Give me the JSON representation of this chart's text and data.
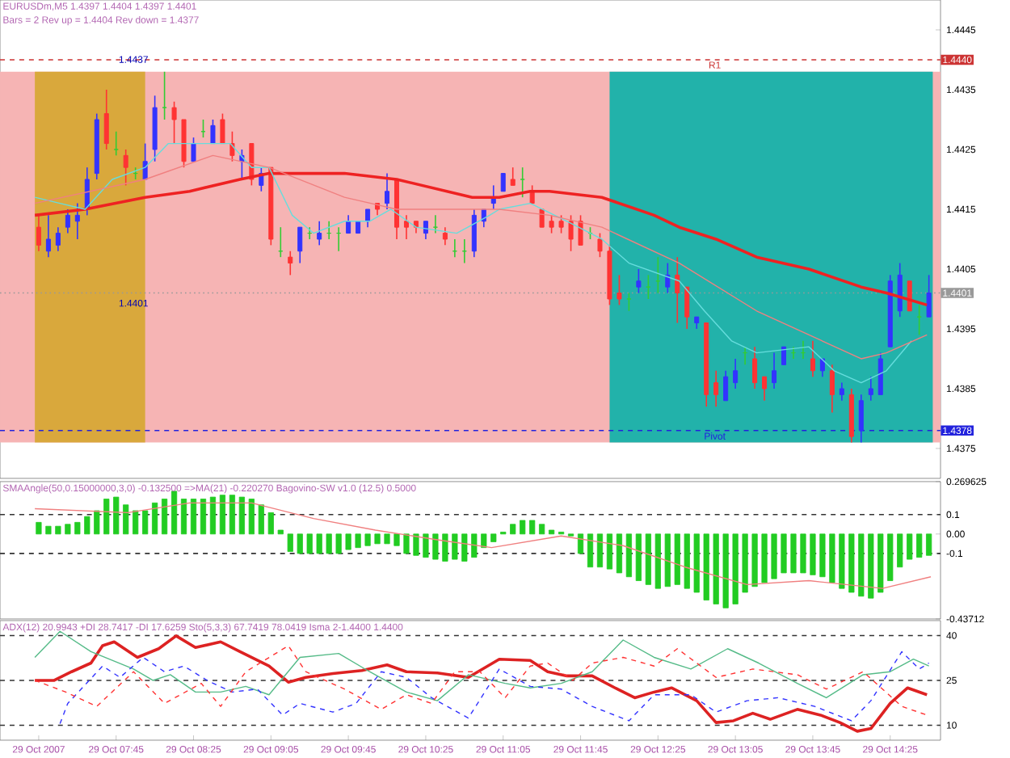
{
  "chart_data": [
    {
      "type": "candlestick",
      "title": "EURUSDm,M5  1.4397 1.4404 1.4397 1.4401",
      "subtitle": "Bars = 2 Rev up =  1.4404 Rev down = 1.4377",
      "x": [
        "2007-10-29T07:05",
        "2007-10-29T07:10",
        "2007-10-29T07:15",
        "2007-10-29T07:20",
        "2007-10-29T07:25",
        "2007-10-29T07:30",
        "2007-10-29T07:35",
        "2007-10-29T07:40",
        "2007-10-29T07:45",
        "2007-10-29T07:50",
        "2007-10-29T07:55",
        "2007-10-29T08:00",
        "2007-10-29T08:05",
        "2007-10-29T08:10",
        "2007-10-29T08:15",
        "2007-10-29T08:20",
        "2007-10-29T08:25",
        "2007-10-29T08:30",
        "2007-10-29T08:35",
        "2007-10-29T08:40",
        "2007-10-29T08:45",
        "2007-10-29T08:50",
        "2007-10-29T08:55",
        "2007-10-29T09:00",
        "2007-10-29T09:05",
        "2007-10-29T09:10",
        "2007-10-29T09:15",
        "2007-10-29T09:20",
        "2007-10-29T09:25",
        "2007-10-29T09:30",
        "2007-10-29T09:35",
        "2007-10-29T09:40",
        "2007-10-29T09:45",
        "2007-10-29T09:50",
        "2007-10-29T09:55",
        "2007-10-29T10:00",
        "2007-10-29T10:05",
        "2007-10-29T10:10",
        "2007-10-29T10:15",
        "2007-10-29T10:20",
        "2007-10-29T10:25",
        "2007-10-29T10:30",
        "2007-10-29T10:35",
        "2007-10-29T10:40",
        "2007-10-29T10:45",
        "2007-10-29T10:50",
        "2007-10-29T10:55",
        "2007-10-29T11:00",
        "2007-10-29T11:05",
        "2007-10-29T11:10",
        "2007-10-29T11:15",
        "2007-10-29T11:20",
        "2007-10-29T11:25",
        "2007-10-29T11:30",
        "2007-10-29T11:35",
        "2007-10-29T11:40",
        "2007-10-29T11:45",
        "2007-10-29T11:50",
        "2007-10-29T11:55",
        "2007-10-29T12:00",
        "2007-10-29T12:05",
        "2007-10-29T12:10",
        "2007-10-29T12:15",
        "2007-10-29T12:20",
        "2007-10-29T12:25",
        "2007-10-29T12:30",
        "2007-10-29T12:35",
        "2007-10-29T12:40",
        "2007-10-29T12:45",
        "2007-10-29T12:50",
        "2007-10-29T12:55",
        "2007-10-29T13:00",
        "2007-10-29T13:05",
        "2007-10-29T13:10",
        "2007-10-29T13:15",
        "2007-10-29T13:20",
        "2007-10-29T13:25",
        "2007-10-29T13:30",
        "2007-10-29T13:35",
        "2007-10-29T13:40",
        "2007-10-29T13:45",
        "2007-10-29T13:50",
        "2007-10-29T13:55",
        "2007-10-29T14:00",
        "2007-10-29T14:05",
        "2007-10-29T14:10",
        "2007-10-29T14:15",
        "2007-10-29T14:20",
        "2007-10-29T14:25",
        "2007-10-29T14:30",
        "2007-10-29T14:35",
        "2007-10-29T14:40",
        "2007-10-29T14:45"
      ],
      "ohlc": [
        [
          1.4412,
          1.4414,
          1.4408,
          1.4409
        ],
        [
          1.4408,
          1.4414,
          1.4407,
          1.441
        ],
        [
          1.4409,
          1.4412,
          1.4408,
          1.4411
        ],
        [
          1.4412,
          1.4415,
          1.4411,
          1.4414
        ],
        [
          1.4413,
          1.4416,
          1.441,
          1.4414
        ],
        [
          1.4415,
          1.4422,
          1.4414,
          1.442
        ],
        [
          1.4421,
          1.4431,
          1.442,
          1.443
        ],
        [
          1.4431,
          1.4435,
          1.4425,
          1.4426
        ],
        [
          1.4425,
          1.4428,
          1.4424,
          1.4425
        ],
        [
          1.4424,
          1.4425,
          1.4419,
          1.4422
        ],
        [
          1.4421,
          1.4422,
          1.442,
          1.4421
        ],
        [
          1.442,
          1.4426,
          1.442,
          1.4423
        ],
        [
          1.4425,
          1.4434,
          1.4423,
          1.4432
        ],
        [
          1.4432,
          1.4438,
          1.443,
          1.4432
        ],
        [
          1.4432,
          1.4433,
          1.4426,
          1.443
        ],
        [
          1.443,
          1.443,
          1.4422,
          1.4423
        ],
        [
          1.4423,
          1.4427,
          1.4423,
          1.4426
        ],
        [
          1.4428,
          1.443,
          1.4427,
          1.4428
        ],
        [
          1.4426,
          1.443,
          1.4426,
          1.4429
        ],
        [
          1.443,
          1.4431,
          1.4426,
          1.4426
        ],
        [
          1.4426,
          1.4428,
          1.4423,
          1.4424
        ],
        [
          1.4423,
          1.4425,
          1.442,
          1.4424
        ],
        [
          1.4426,
          1.4426,
          1.4419,
          1.442
        ],
        [
          1.4419,
          1.4422,
          1.4418,
          1.4421
        ],
        [
          1.4422,
          1.4422,
          1.4409,
          1.441
        ],
        [
          1.4408,
          1.4412,
          1.4407,
          1.4408
        ],
        [
          1.4407,
          1.4408,
          1.4404,
          1.4406
        ],
        [
          1.4408,
          1.4412,
          1.4406,
          1.4412
        ],
        [
          1.4411,
          1.4412,
          1.441,
          1.4411
        ],
        [
          1.441,
          1.4413,
          1.4409,
          1.4411
        ],
        [
          1.4411,
          1.4413,
          1.441,
          1.4411
        ],
        [
          1.4411,
          1.4412,
          1.4408,
          1.4411
        ],
        [
          1.4411,
          1.4414,
          1.4411,
          1.4413
        ],
        [
          1.4411,
          1.4413,
          1.4411,
          1.4413
        ],
        [
          1.4413,
          1.4415,
          1.4412,
          1.4415
        ],
        [
          1.4416,
          1.4416,
          1.4414,
          1.4415
        ],
        [
          1.4416,
          1.4421,
          1.4415,
          1.4418
        ],
        [
          1.442,
          1.442,
          1.441,
          1.4412
        ],
        [
          1.4413,
          1.4414,
          1.441,
          1.4412
        ],
        [
          1.4413,
          1.4413,
          1.4411,
          1.4412
        ],
        [
          1.4411,
          1.4413,
          1.441,
          1.4413
        ],
        [
          1.4412,
          1.4414,
          1.4411,
          1.4412
        ],
        [
          1.4411,
          1.4412,
          1.4409,
          1.441
        ],
        [
          1.4408,
          1.441,
          1.4407,
          1.4408
        ],
        [
          1.4408,
          1.441,
          1.4406,
          1.4408
        ],
        [
          1.4408,
          1.4415,
          1.4407,
          1.4414
        ],
        [
          1.4413,
          1.4415,
          1.4412,
          1.4415
        ],
        [
          1.4416,
          1.4419,
          1.4415,
          1.4417
        ],
        [
          1.4418,
          1.4421,
          1.4418,
          1.4421
        ],
        [
          1.442,
          1.4422,
          1.4419,
          1.4419
        ],
        [
          1.442,
          1.4422,
          1.4417,
          1.442
        ],
        [
          1.4418,
          1.4419,
          1.4416,
          1.4416
        ],
        [
          1.4415,
          1.4415,
          1.4412,
          1.4412
        ],
        [
          1.4413,
          1.4414,
          1.4411,
          1.4412
        ],
        [
          1.4413,
          1.4414,
          1.4411,
          1.4412
        ],
        [
          1.4413,
          1.4414,
          1.4408,
          1.441
        ],
        [
          1.4413,
          1.4414,
          1.4409,
          1.4409
        ],
        [
          1.4411,
          1.4412,
          1.441,
          1.4411
        ],
        [
          1.441,
          1.4411,
          1.4407,
          1.4408
        ],
        [
          1.4408,
          1.4409,
          1.4399,
          1.44
        ],
        [
          1.4401,
          1.4404,
          1.4399,
          1.44
        ],
        [
          1.44,
          1.4401,
          1.4398,
          1.44
        ],
        [
          1.4402,
          1.4405,
          1.4401,
          1.4403
        ],
        [
          1.4402,
          1.4404,
          1.44,
          1.4402
        ],
        [
          1.4403,
          1.4407,
          1.4401,
          1.4403
        ],
        [
          1.4402,
          1.4406,
          1.4401,
          1.4404
        ],
        [
          1.4404,
          1.4407,
          1.4396,
          1.4401
        ],
        [
          1.4402,
          1.4402,
          1.4395,
          1.4397
        ],
        [
          1.4396,
          1.4397,
          1.4395,
          1.4397
        ],
        [
          1.4396,
          1.4396,
          1.4382,
          1.4384
        ],
        [
          1.4386,
          1.4388,
          1.4382,
          1.4384
        ],
        [
          1.4383,
          1.4388,
          1.4383,
          1.4387
        ],
        [
          1.4386,
          1.439,
          1.4385,
          1.4388
        ],
        [
          1.4391,
          1.4392,
          1.4389,
          1.4391
        ],
        [
          1.439,
          1.4392,
          1.4385,
          1.4386
        ],
        [
          1.4387,
          1.4387,
          1.4383,
          1.4385
        ],
        [
          1.4386,
          1.4391,
          1.4385,
          1.4388
        ],
        [
          1.4389,
          1.4392,
          1.4389,
          1.4392
        ],
        [
          1.4391,
          1.4392,
          1.439,
          1.4391
        ],
        [
          1.4391,
          1.4393,
          1.439,
          1.4391
        ],
        [
          1.439,
          1.4393,
          1.4387,
          1.4388
        ],
        [
          1.4388,
          1.439,
          1.4387,
          1.439
        ],
        [
          1.4388,
          1.4389,
          1.4381,
          1.4384
        ],
        [
          1.4384,
          1.4386,
          1.4383,
          1.4385
        ],
        [
          1.4384,
          1.4385,
          1.4376,
          1.4377
        ],
        [
          1.4378,
          1.4384,
          1.4376,
          1.4383
        ],
        [
          1.4384,
          1.4387,
          1.4383,
          1.4385
        ],
        [
          1.4384,
          1.4391,
          1.4384,
          1.439
        ],
        [
          1.4392,
          1.4404,
          1.4392,
          1.4403
        ],
        [
          1.4398,
          1.4406,
          1.4397,
          1.4404
        ],
        [
          1.4403,
          1.4403,
          1.4398,
          1.4398
        ],
        [
          1.4397,
          1.4399,
          1.4394,
          1.4397
        ],
        [
          1.4397,
          1.4404,
          1.4397,
          1.4401
        ]
      ],
      "colors": [
        "#ff3333",
        "#3333ff",
        "#3333ff",
        "#3333ff",
        "#3333ff",
        "#3333ff",
        "#3333ff",
        "#ff3333",
        "#33cc33",
        "#ff3333",
        "#33cc33",
        "#3333ff",
        "#3333ff",
        "#33cc33",
        "#ff3333",
        "#ff3333",
        "#3333ff",
        "#33cc33",
        "#3333ff",
        "#ff3333",
        "#ff3333",
        "#3333ff",
        "#ff3333",
        "#3333ff",
        "#ff3333",
        "#33cc33",
        "#ff3333",
        "#3333ff",
        "#33cc33",
        "#3333ff",
        "#33cc33",
        "#33cc33",
        "#3333ff",
        "#3333ff",
        "#3333ff",
        "#ff3333",
        "#3333ff",
        "#ff3333",
        "#ff3333",
        "#ff3333",
        "#3333ff",
        "#33cc33",
        "#ff3333",
        "#33cc33",
        "#33cc33",
        "#3333ff",
        "#3333ff",
        "#3333ff",
        "#3333ff",
        "#ff3333",
        "#33cc33",
        "#ff3333",
        "#ff3333",
        "#ff3333",
        "#ff3333",
        "#ff3333",
        "#ff3333",
        "#33cc33",
        "#ff3333",
        "#ff3333",
        "#ff3333",
        "#33cc33",
        "#3333ff",
        "#33cc33",
        "#33cc33",
        "#3333ff",
        "#ff3333",
        "#ff3333",
        "#3333ff",
        "#ff3333",
        "#ff3333",
        "#3333ff",
        "#3333ff",
        "#33cc33",
        "#ff3333",
        "#ff3333",
        "#3333ff",
        "#3333ff",
        "#33cc33",
        "#33cc33",
        "#ff3333",
        "#3333ff",
        "#ff3333",
        "#3333ff",
        "#ff3333",
        "#3333ff",
        "#3333ff",
        "#3333ff",
        "#3333ff",
        "#3333ff",
        "#ff3333",
        "#33cc33",
        "#3333ff"
      ],
      "series": [
        {
          "type": "line",
          "color": "#ee2222",
          "x": [
            "2007-10-29T07:03",
            "2007-10-29T07:29",
            "2007-10-29T08:00",
            "2007-10-29T08:23",
            "2007-10-29T08:49",
            "2007-10-29T09:04",
            "2007-10-29T09:43",
            "2007-10-29T10:10",
            "2007-10-29T10:49",
            "2007-10-29T11:03",
            "2007-10-29T11:19",
            "2007-10-29T11:29",
            "2007-10-29T11:56",
            "2007-10-29T12:23",
            "2007-10-29T12:36",
            "2007-10-29T12:55",
            "2007-10-29T13:16",
            "2007-10-29T13:43",
            "2007-10-29T14:10",
            "2007-10-29T14:23",
            "2007-10-29T14:44"
          ],
          "values": [
            1.4414,
            1.4415,
            1.4417,
            1.4418,
            1.442,
            1.4421,
            1.4421,
            1.442,
            1.4417,
            1.4417,
            1.4418,
            1.4418,
            1.4417,
            1.4414,
            1.4412,
            1.441,
            1.4407,
            1.4405,
            1.4402,
            1.4401,
            1.4399
          ]
        },
        {
          "type": "line",
          "color": "#66dddd",
          "x": [
            "2007-10-29T07:03",
            "2007-10-29T07:16",
            "2007-10-29T07:29",
            "2007-10-29T07:43",
            "2007-10-29T08:00",
            "2007-10-29T08:12",
            "2007-10-29T08:35",
            "2007-10-29T08:44",
            "2007-10-29T08:55",
            "2007-10-29T09:04",
            "2007-10-29T09:16",
            "2007-10-29T09:27",
            "2007-10-29T09:43",
            "2007-10-29T09:56",
            "2007-10-29T10:07",
            "2007-10-29T10:20",
            "2007-10-29T10:41",
            "2007-10-29T10:58",
            "2007-10-29T11:03",
            "2007-10-29T11:19",
            "2007-10-29T11:38",
            "2007-10-29T11:56",
            "2007-10-29T12:10",
            "2007-10-29T12:36",
            "2007-10-29T12:49",
            "2007-10-29T13:03",
            "2007-10-29T13:16",
            "2007-10-29T13:43",
            "2007-10-29T13:56",
            "2007-10-29T14:10",
            "2007-10-29T14:23",
            "2007-10-29T14:36"
          ],
          "values": [
            1.4417,
            1.4416,
            1.4415,
            1.442,
            1.4422,
            1.4426,
            1.4426,
            1.4426,
            1.4422,
            1.4422,
            1.4414,
            1.4411,
            1.4413,
            1.4413,
            1.4415,
            1.4412,
            1.4411,
            1.4414,
            1.4415,
            1.4416,
            1.4413,
            1.441,
            1.4406,
            1.4403,
            1.4398,
            1.4393,
            1.4391,
            1.4392,
            1.4388,
            1.4386,
            1.4388,
            1.4393
          ]
        },
        {
          "type": "line",
          "color": "#f08080",
          "x": [
            "2007-10-29T07:03",
            "2007-10-29T08:00",
            "2007-10-29T08:35",
            "2007-10-29T09:04",
            "2007-10-29T09:43",
            "2007-10-29T10:10",
            "2007-10-29T10:49",
            "2007-10-29T11:03",
            "2007-10-29T11:29",
            "2007-10-29T11:56",
            "2007-10-29T12:36",
            "2007-10-29T13:16",
            "2007-10-29T13:43",
            "2007-10-29T14:10",
            "2007-10-29T14:23",
            "2007-10-29T14:44"
          ],
          "values": [
            1.4416,
            1.442,
            1.4424,
            1.4422,
            1.4417,
            1.4415,
            1.4415,
            1.4415,
            1.4414,
            1.4412,
            1.4406,
            1.4398,
            1.4394,
            1.439,
            1.4391,
            1.4394
          ]
        }
      ],
      "bands": [
        {
          "axis": "y",
          "from": 1.4376,
          "to": 1.4438,
          "color": "#f6b4b4"
        },
        {
          "axis": "x",
          "from": "2007-10-29T07:03",
          "to": "2007-10-29T08:00",
          "color": "#d9a83c"
        },
        {
          "axis": "x",
          "from": "2007-10-29T12:00",
          "to": "2007-10-29T14:47",
          "color": "#22b2aa"
        }
      ],
      "ref_lines": [
        {
          "axis": "y",
          "value": 1.444,
          "label": "R1",
          "color": "#cc3333",
          "line_style": "dashed"
        },
        {
          "axis": "y",
          "value": 1.4378,
          "label": "Pivot",
          "color": "#2222dd",
          "line_style": "dashed"
        },
        {
          "axis": "y",
          "value": 1.4401,
          "color": "#999999",
          "line_style": "dotted"
        }
      ],
      "annotations": [
        {
          "text": "1.4437",
          "x": "2007-10-29T07:54",
          "y": 1.4437
        },
        {
          "text": "1.4401",
          "x": "2007-10-29T07:54",
          "y": 1.4401
        },
        {
          "text": "1.4440",
          "x": "2007-10-29T14:51",
          "y": 1.444
        },
        {
          "text": "1.4401",
          "x": "2007-10-29T14:51",
          "y": 1.4401
        },
        {
          "text": "1.4378",
          "x": "2007-10-29T14:51",
          "y": 1.4378
        }
      ],
      "xlim": [
        "2007-10-29T06:45",
        "2007-10-29T14:51"
      ],
      "ylim": [
        1.437,
        1.445
      ],
      "yticks": [
        1.4375,
        1.4385,
        1.4395,
        1.4405,
        1.4415,
        1.4425,
        1.4435,
        1.4445
      ],
      "tick_labels": "y"
    },
    {
      "type": "bar",
      "title": "SMAAngle(50,0.15000000,3,0) -0.132500  =>MA(21) -0.220270  Bagovino-SW v1.0 (12.5) 0.5000",
      "x": [
        "2007-10-29T07:05",
        "2007-10-29T07:10",
        "2007-10-29T07:15",
        "2007-10-29T07:20",
        "2007-10-29T07:25",
        "2007-10-29T07:30",
        "2007-10-29T07:35",
        "2007-10-29T07:40",
        "2007-10-29T07:45",
        "2007-10-29T07:50",
        "2007-10-29T07:55",
        "2007-10-29T08:00",
        "2007-10-29T08:05",
        "2007-10-29T08:10",
        "2007-10-29T08:15",
        "2007-10-29T08:20",
        "2007-10-29T08:25",
        "2007-10-29T08:30",
        "2007-10-29T08:35",
        "2007-10-29T08:40",
        "2007-10-29T08:45",
        "2007-10-29T08:50",
        "2007-10-29T08:55",
        "2007-10-29T09:00",
        "2007-10-29T09:05",
        "2007-10-29T09:10",
        "2007-10-29T09:15",
        "2007-10-29T09:20",
        "2007-10-29T09:25",
        "2007-10-29T09:30",
        "2007-10-29T09:35",
        "2007-10-29T09:40",
        "2007-10-29T09:45",
        "2007-10-29T09:50",
        "2007-10-29T09:55",
        "2007-10-29T10:00",
        "2007-10-29T10:05",
        "2007-10-29T10:10",
        "2007-10-29T10:15",
        "2007-10-29T10:20",
        "2007-10-29T10:25",
        "2007-10-29T10:30",
        "2007-10-29T10:35",
        "2007-10-29T10:40",
        "2007-10-29T10:45",
        "2007-10-29T10:50",
        "2007-10-29T10:55",
        "2007-10-29T11:00",
        "2007-10-29T11:05",
        "2007-10-29T11:10",
        "2007-10-29T11:15",
        "2007-10-29T11:20",
        "2007-10-29T11:25",
        "2007-10-29T11:30",
        "2007-10-29T11:35",
        "2007-10-29T11:40",
        "2007-10-29T11:45",
        "2007-10-29T11:50",
        "2007-10-29T11:55",
        "2007-10-29T12:00",
        "2007-10-29T12:05",
        "2007-10-29T12:10",
        "2007-10-29T12:15",
        "2007-10-29T12:20",
        "2007-10-29T12:25",
        "2007-10-29T12:30",
        "2007-10-29T12:35",
        "2007-10-29T12:40",
        "2007-10-29T12:45",
        "2007-10-29T12:50",
        "2007-10-29T12:55",
        "2007-10-29T13:00",
        "2007-10-29T13:05",
        "2007-10-29T13:10",
        "2007-10-29T13:15",
        "2007-10-29T13:20",
        "2007-10-29T13:25",
        "2007-10-29T13:30",
        "2007-10-29T13:35",
        "2007-10-29T13:40",
        "2007-10-29T13:45",
        "2007-10-29T13:50",
        "2007-10-29T13:55",
        "2007-10-29T14:00",
        "2007-10-29T14:05",
        "2007-10-29T14:10",
        "2007-10-29T14:15",
        "2007-10-29T14:20",
        "2007-10-29T14:25",
        "2007-10-29T14:30",
        "2007-10-29T14:35",
        "2007-10-29T14:40",
        "2007-10-29T14:45"
      ],
      "series": [
        {
          "type": "bar",
          "color": "#22cc22",
          "values": [
            0.06,
            0.04,
            0.04,
            0.05,
            0.06,
            0.09,
            0.12,
            0.18,
            0.19,
            0.15,
            0.12,
            0.12,
            0.16,
            0.18,
            0.22,
            0.18,
            0.18,
            0.18,
            0.19,
            0.2,
            0.2,
            0.19,
            0.18,
            0.15,
            0.11,
            0.02,
            -0.09,
            -0.1,
            -0.1,
            -0.1,
            -0.1,
            -0.1,
            -0.08,
            -0.07,
            -0.06,
            -0.05,
            -0.05,
            -0.06,
            -0.1,
            -0.11,
            -0.12,
            -0.13,
            -0.14,
            -0.13,
            -0.14,
            -0.12,
            -0.07,
            -0.04,
            0.01,
            0.05,
            0.07,
            0.07,
            0.05,
            0.02,
            0.01,
            -0.01,
            -0.1,
            -0.17,
            -0.17,
            -0.18,
            -0.2,
            -0.22,
            -0.24,
            -0.26,
            -0.28,
            -0.27,
            -0.26,
            -0.28,
            -0.3,
            -0.34,
            -0.36,
            -0.38,
            -0.36,
            -0.3,
            -0.27,
            -0.25,
            -0.23,
            -0.2,
            -0.2,
            -0.2,
            -0.21,
            -0.22,
            -0.25,
            -0.28,
            -0.3,
            -0.32,
            -0.33,
            -0.3,
            -0.24,
            -0.17,
            -0.13,
            -0.12,
            -0.11
          ]
        },
        {
          "type": "line",
          "color": "#f08080",
          "x": [
            "2007-10-29T07:03",
            "2007-10-29T07:51",
            "2007-10-29T08:23",
            "2007-10-29T08:55",
            "2007-10-29T09:27",
            "2007-10-29T09:59",
            "2007-10-29T10:31",
            "2007-10-29T10:59",
            "2007-10-29T11:35",
            "2007-10-29T12:07",
            "2007-10-29T12:39",
            "2007-10-29T13:11",
            "2007-10-29T13:43",
            "2007-10-29T14:21",
            "2007-10-29T14:46"
          ],
          "values": [
            0.13,
            0.11,
            0.16,
            0.16,
            0.08,
            0.02,
            -0.03,
            -0.07,
            -0.01,
            -0.06,
            -0.17,
            -0.26,
            -0.24,
            -0.28,
            -0.22
          ]
        }
      ],
      "ref_lines": [
        {
          "axis": "y",
          "value": 0.1,
          "color": "#333333",
          "line_style": "dashed"
        },
        {
          "axis": "y",
          "value": -0.1,
          "color": "#333333",
          "line_style": "dashed"
        }
      ],
      "xlim": [
        "2007-10-29T06:45",
        "2007-10-29T14:51"
      ],
      "ylim": [
        -0.43712,
        0.269625
      ],
      "yticks": [
        -0.43712,
        -0.1,
        {
          "value": 0,
          "label": "0.00"
        },
        0.1,
        0.269625
      ],
      "tick_labels": "y"
    },
    {
      "type": "line",
      "title": "ADX(12) 20.9943 +DI 28.7417 -DI 17.6259 Sto(5,3,3) 67.7419 78.0419 Isma 2-1.4400 1.4400",
      "series": [
        {
          "color": "#dd2222",
          "x": [
            "2007-10-29T07:03",
            "2007-10-29T07:13",
            "2007-10-29T07:22",
            "2007-10-29T07:32",
            "2007-10-29T07:38",
            "2007-10-29T07:44",
            "2007-10-29T07:56",
            "2007-10-29T08:07",
            "2007-10-29T08:16",
            "2007-10-29T08:26",
            "2007-10-29T08:39",
            "2007-10-29T08:49",
            "2007-10-29T09:04",
            "2007-10-29T09:14",
            "2007-10-29T09:23",
            "2007-10-29T09:37",
            "2007-10-29T09:52",
            "2007-10-29T10:05",
            "2007-10-29T10:15",
            "2007-10-29T10:31",
            "2007-10-29T10:47",
            "2007-10-29T11:03",
            "2007-10-29T11:19",
            "2007-10-29T11:28",
            "2007-10-29T11:38",
            "2007-10-29T11:51",
            "2007-10-29T12:04",
            "2007-10-29T12:13",
            "2007-10-29T12:23",
            "2007-10-29T12:32",
            "2007-10-29T12:45",
            "2007-10-29T12:55",
            "2007-10-29T13:04",
            "2007-10-29T13:14",
            "2007-10-29T13:23",
            "2007-10-29T13:37",
            "2007-10-29T13:49",
            "2007-10-29T13:59",
            "2007-10-29T14:08",
            "2007-10-29T14:15",
            "2007-10-29T14:25",
            "2007-10-29T14:34",
            "2007-10-29T14:44"
          ],
          "values": [
            25,
            25,
            27.9,
            30.8,
            36.6,
            37.9,
            32.7,
            35.6,
            39.9,
            36,
            37.9,
            34.6,
            29.8,
            24.4,
            26,
            27.3,
            28.3,
            30.2,
            27.9,
            27.5,
            26,
            32.1,
            31.7,
            27.9,
            26.5,
            26.5,
            22.1,
            19.2,
            21.1,
            22.5,
            18.2,
            10.9,
            11.5,
            14,
            12,
            15.3,
            13.4,
            10.9,
            8,
            8.9,
            17.3,
            22.5,
            20.2
          ]
        },
        {
          "color": "#55bb88",
          "x": [
            "2007-10-29T07:03",
            "2007-10-29T07:16",
            "2007-10-29T07:32",
            "2007-10-29T07:54",
            "2007-10-29T08:04",
            "2007-10-29T08:13",
            "2007-10-29T08:26",
            "2007-10-29T08:39",
            "2007-10-29T08:52",
            "2007-10-29T09:04",
            "2007-10-29T09:20",
            "2007-10-29T09:40",
            "2007-10-29T09:56",
            "2007-10-29T10:15",
            "2007-10-29T10:31",
            "2007-10-29T10:47",
            "2007-10-29T11:06",
            "2007-10-29T11:19",
            "2007-10-29T11:35",
            "2007-10-29T11:51",
            "2007-10-29T12:07",
            "2007-10-29T12:23",
            "2007-10-29T12:42",
            "2007-10-29T13:01",
            "2007-10-29T13:17",
            "2007-10-29T13:37",
            "2007-10-29T13:52",
            "2007-10-29T14:11",
            "2007-10-29T14:25",
            "2007-10-29T14:37",
            "2007-10-29T14:45"
          ],
          "values": [
            32.7,
            41.4,
            34.6,
            28.8,
            25,
            26.9,
            21.1,
            21.1,
            23,
            20.2,
            32.7,
            34,
            27.9,
            21.1,
            18.2,
            26.9,
            24,
            22.5,
            24,
            27.9,
            38.5,
            32.7,
            28.8,
            35.6,
            30.8,
            24,
            19.2,
            26.9,
            27.9,
            32.1,
            29.8
          ]
        },
        {
          "color": "#3333ff",
          "line_style": "dashed",
          "x": [
            "2007-10-29T07:16",
            "2007-10-29T07:20",
            "2007-10-29T07:38",
            "2007-10-29T07:47",
            "2007-10-29T07:59",
            "2007-10-29T08:10",
            "2007-10-29T08:20",
            "2007-10-29T08:32",
            "2007-10-29T08:45",
            "2007-10-29T08:58",
            "2007-10-29T09:11",
            "2007-10-29T09:20",
            "2007-10-29T09:37",
            "2007-10-29T09:49",
            "2007-10-29T10:02",
            "2007-10-29T10:15",
            "2007-10-29T10:28",
            "2007-10-29T10:47",
            "2007-10-29T11:03",
            "2007-10-29T11:19",
            "2007-10-29T11:35",
            "2007-10-29T11:51",
            "2007-10-29T12:10",
            "2007-10-29T12:23",
            "2007-10-29T12:42",
            "2007-10-29T12:55",
            "2007-10-29T13:11",
            "2007-10-29T13:27",
            "2007-10-29T13:46",
            "2007-10-29T14:05",
            "2007-10-29T14:15",
            "2007-10-29T14:31",
            "2007-10-29T14:40",
            "2007-10-29T14:45"
          ],
          "values": [
            10.5,
            17.3,
            29.8,
            26,
            32.7,
            27.9,
            29.8,
            25,
            21.1,
            22.1,
            13.4,
            17.3,
            14.4,
            17.3,
            27.9,
            26,
            19.2,
            12.4,
            28.8,
            23,
            22.1,
            16.3,
            11.5,
            20.2,
            20.2,
            14.4,
            18.2,
            19.2,
            16.3,
            11.5,
            18.2,
            34.6,
            28.8,
            30.8
          ]
        },
        {
          "color": "#ff3333",
          "line_style": "dashed",
          "x": [
            "2007-10-29T07:03",
            "2007-10-29T07:19",
            "2007-10-29T07:35",
            "2007-10-29T07:54",
            "2007-10-29T08:10",
            "2007-10-29T08:29",
            "2007-10-29T08:39",
            "2007-10-29T08:52",
            "2007-10-29T09:14",
            "2007-10-29T09:23",
            "2007-10-29T09:43",
            "2007-10-29T10:02",
            "2007-10-29T10:15",
            "2007-10-29T10:28",
            "2007-10-29T10:40",
            "2007-10-29T10:53",
            "2007-10-29T11:06",
            "2007-10-29T11:19",
            "2007-10-29T11:28",
            "2007-10-29T11:41",
            "2007-10-29T11:51",
            "2007-10-29T12:07",
            "2007-10-29T12:23",
            "2007-10-29T12:35",
            "2007-10-29T12:55",
            "2007-10-29T13:14",
            "2007-10-29T13:37",
            "2007-10-29T13:52",
            "2007-10-29T14:11",
            "2007-10-29T14:31",
            "2007-10-29T14:44"
          ],
          "values": [
            25,
            21.1,
            16.3,
            27.9,
            17.3,
            24,
            16.3,
            27.9,
            36.6,
            27.9,
            22.1,
            15.3,
            20.2,
            17.3,
            27.9,
            27.9,
            19.2,
            29.8,
            30.8,
            25,
            30.8,
            32.7,
            29.8,
            35.6,
            26,
            28.8,
            26.9,
            22.1,
            27.9,
            16.3,
            13.4
          ]
        }
      ],
      "ref_lines": [
        {
          "axis": "y",
          "value": 40,
          "color": "#333333",
          "line_style": "dashed"
        },
        {
          "axis": "y",
          "value": 25,
          "color": "#333333",
          "line_style": "dashed"
        },
        {
          "axis": "y",
          "value": 10,
          "color": "#333333",
          "line_style": "dashed"
        }
      ],
      "xlim": [
        "2007-10-29T06:45",
        "2007-10-29T14:51"
      ],
      "ylim": [
        5,
        45
      ],
      "xticks": [
        {
          "value": "2007-10-29T07:05",
          "label": "29 Oct 2007"
        },
        {
          "value": "2007-10-29T07:45",
          "label": "29 Oct 07:45"
        },
        {
          "value": "2007-10-29T08:25",
          "label": "29 Oct 08:25"
        },
        {
          "value": "2007-10-29T09:05",
          "label": "29 Oct 09:05"
        },
        {
          "value": "2007-10-29T09:45",
          "label": "29 Oct 09:45"
        },
        {
          "value": "2007-10-29T10:25",
          "label": "29 Oct 10:25"
        },
        {
          "value": "2007-10-29T11:05",
          "label": "29 Oct 11:05"
        },
        {
          "value": "2007-10-29T11:45",
          "label": "29 Oct 11:45"
        },
        {
          "value": "2007-10-29T12:25",
          "label": "29 Oct 12:25"
        },
        {
          "value": "2007-10-29T13:05",
          "label": "29 Oct 13:05"
        },
        {
          "value": "2007-10-29T13:45",
          "label": "29 Oct 13:45"
        },
        {
          "value": "2007-10-29T14:25",
          "label": "29 Oct 14:25"
        }
      ],
      "yticks": [
        10,
        25,
        40
      ]
    }
  ]
}
